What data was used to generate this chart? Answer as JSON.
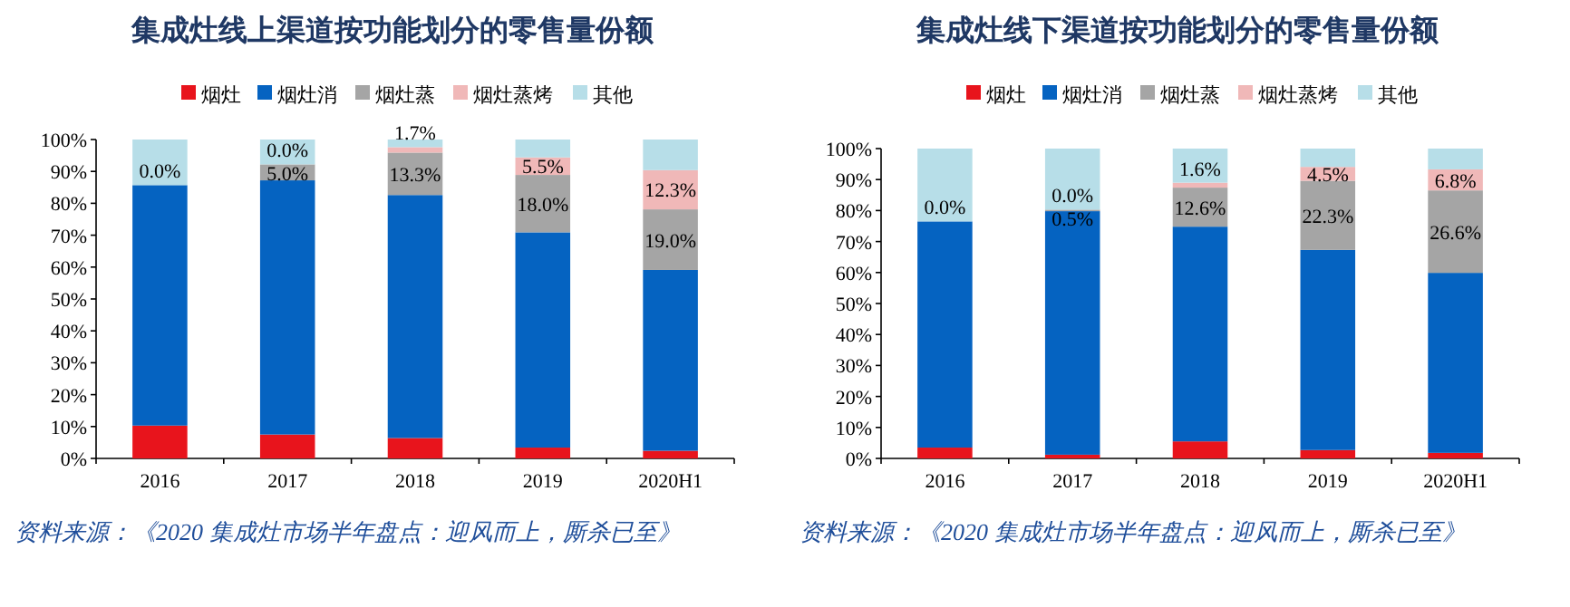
{
  "chart_data": [
    {
      "type": "bar",
      "title": "集成灶线上渠道按功能划分的零售量份额",
      "stacked": true,
      "legend": "top",
      "categories": [
        "2016",
        "2017",
        "2018",
        "2019",
        "2020H1"
      ],
      "ylim": [
        0,
        100
      ],
      "yticks": [
        {
          "value": 0,
          "label": "0%"
        },
        {
          "value": 10,
          "label": "10%"
        },
        {
          "value": 20,
          "label": "20%"
        },
        {
          "value": 30,
          "label": "30%"
        },
        {
          "value": 40,
          "label": "40%"
        },
        {
          "value": 50,
          "label": "50%"
        },
        {
          "value": 60,
          "label": "60%"
        },
        {
          "value": 70,
          "label": "70%"
        },
        {
          "value": 80,
          "label": "80%"
        },
        {
          "value": 90,
          "label": "90%"
        },
        {
          "value": 100,
          "label": "100%"
        }
      ],
      "series": [
        {
          "name": "烟灶",
          "color": "#e8141c",
          "values": [
            10.3,
            7.5,
            6.4,
            3.4,
            2.4
          ]
        },
        {
          "name": "烟灶消",
          "color": "#0563c1",
          "values": [
            75.4,
            79.7,
            76.2,
            67.5,
            56.7
          ]
        },
        {
          "name": "烟灶蒸",
          "color": "#a5a5a5",
          "values": [
            0.0,
            5.0,
            13.3,
            18.0,
            19.0
          ],
          "value_labels": [
            "0.0%",
            "5.0%",
            "13.3%",
            "18.0%",
            "19.0%"
          ]
        },
        {
          "name": "烟灶蒸烤",
          "color": "#f0b8b8",
          "values": [
            0.0,
            0.0,
            1.7,
            5.5,
            12.3
          ],
          "value_labels": [
            null,
            "0.0%",
            "1.7%",
            "5.5%",
            "12.3%"
          ]
        },
        {
          "name": "其他",
          "color": "#b7dee8",
          "values": [
            14.3,
            7.8,
            2.4,
            5.6,
            9.6
          ]
        }
      ],
      "annotations": [
        "资料来源：《2020 集成灶市场半年盘点：迎风而上，厮杀已至》"
      ]
    },
    {
      "type": "bar",
      "title": "集成灶线下渠道按功能划分的零售量份额",
      "stacked": true,
      "legend": "top",
      "categories": [
        "2016",
        "2017",
        "2018",
        "2019",
        "2020H1"
      ],
      "ylim": [
        0,
        100
      ],
      "yticks": [
        {
          "value": 0,
          "label": "0%"
        },
        {
          "value": 10,
          "label": "10%"
        },
        {
          "value": 20,
          "label": "20%"
        },
        {
          "value": 30,
          "label": "30%"
        },
        {
          "value": 40,
          "label": "40%"
        },
        {
          "value": 50,
          "label": "50%"
        },
        {
          "value": 60,
          "label": "60%"
        },
        {
          "value": 70,
          "label": "70%"
        },
        {
          "value": 80,
          "label": "80%"
        },
        {
          "value": 90,
          "label": "90%"
        },
        {
          "value": 100,
          "label": "100%"
        }
      ],
      "series": [
        {
          "name": "烟灶",
          "color": "#e8141c",
          "values": [
            3.5,
            1.2,
            5.5,
            2.7,
            1.8
          ]
        },
        {
          "name": "烟灶消",
          "color": "#0563c1",
          "values": [
            73.0,
            78.6,
            69.3,
            64.6,
            58.1
          ]
        },
        {
          "name": "烟灶蒸",
          "color": "#a5a5a5",
          "values": [
            0.0,
            0.5,
            12.6,
            22.3,
            26.6
          ],
          "value_labels": [
            "0.0%",
            "0.5%",
            "12.6%",
            "22.3%",
            "26.6%"
          ]
        },
        {
          "name": "烟灶蒸烤",
          "color": "#f0b8b8",
          "values": [
            0.0,
            0.0,
            1.6,
            4.5,
            6.8
          ],
          "value_labels": [
            null,
            "0.0%",
            "1.6%",
            "4.5%",
            "6.8%"
          ]
        },
        {
          "name": "其他",
          "color": "#b7dee8",
          "values": [
            23.5,
            19.7,
            11.0,
            5.9,
            6.7
          ]
        }
      ],
      "annotations": [
        "资料来源：《2020 集成灶市场半年盘点：迎风而上，厮杀已至》"
      ]
    }
  ]
}
